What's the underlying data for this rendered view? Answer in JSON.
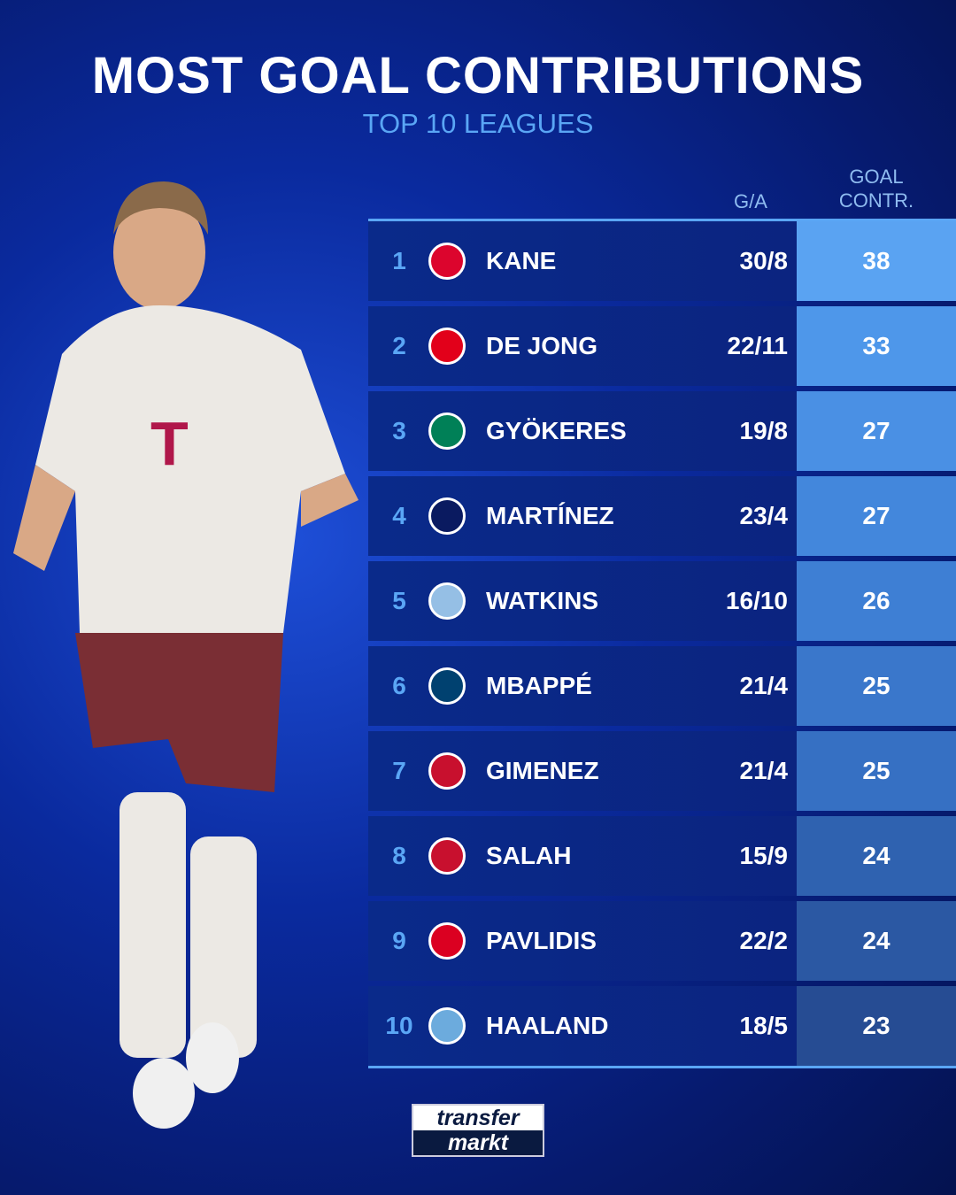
{
  "title": "MOST GOAL CONTRIBUTIONS",
  "subtitle": "TOP 10 LEAGUES",
  "columns": {
    "ga": "G/A",
    "contr_line1": "GOAL",
    "contr_line2": "CONTR."
  },
  "rows": [
    {
      "rank": "1",
      "club": "fc-bayern-crest",
      "name": "KANE",
      "ga": "30/8",
      "contr": "38",
      "crest_color": "#dc052d"
    },
    {
      "rank": "2",
      "club": "psv-crest",
      "name": "DE JONG",
      "ga": "22/11",
      "contr": "33",
      "crest_color": "#e2001a"
    },
    {
      "rank": "3",
      "club": "sporting-cp-crest",
      "name": "GYÖKERES",
      "ga": "19/8",
      "contr": "27",
      "crest_color": "#008057"
    },
    {
      "rank": "4",
      "club": "inter-crest",
      "name": "MARTÍNEZ",
      "ga": "23/4",
      "contr": "27",
      "crest_color": "#0a1a60"
    },
    {
      "rank": "5",
      "club": "aston-villa-crest",
      "name": "WATKINS",
      "ga": "16/10",
      "contr": "26",
      "crest_color": "#95bfe5"
    },
    {
      "rank": "6",
      "club": "psg-crest",
      "name": "MBAPPÉ",
      "ga": "21/4",
      "contr": "25",
      "crest_color": "#004170"
    },
    {
      "rank": "7",
      "club": "feyenoord-crest",
      "name": "GIMENEZ",
      "ga": "21/4",
      "contr": "25",
      "crest_color": "#c8102e"
    },
    {
      "rank": "8",
      "club": "liverpool-crest",
      "name": "SALAH",
      "ga": "15/9",
      "contr": "24",
      "crest_color": "#c8102e"
    },
    {
      "rank": "9",
      "club": "az-crest",
      "name": "PAVLIDIS",
      "ga": "22/2",
      "contr": "24",
      "crest_color": "#db0021"
    },
    {
      "rank": "10",
      "club": "man-city-crest",
      "name": "HAALAND",
      "ga": "18/5",
      "contr": "23",
      "crest_color": "#6cabdd"
    }
  ],
  "contr_colors": [
    "#5aa3f2",
    "#4e97ea",
    "#4a90e4",
    "#4387dc",
    "#3e7fd4",
    "#3a77cb",
    "#3670c3",
    "#2f62b0",
    "#2b58a3",
    "#264c93"
  ],
  "logo": {
    "line1": "transfer",
    "line2": "markt"
  }
}
